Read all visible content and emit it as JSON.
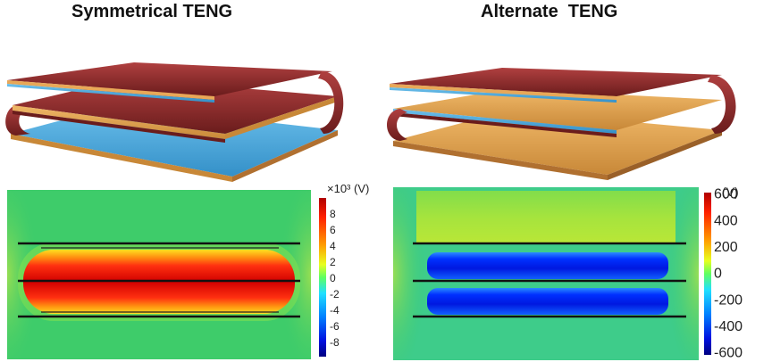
{
  "left_panel": {
    "title": "Symmetrical TENG",
    "colorbar_unit_html": "×10³ (V)",
    "colorbar_ticks": [
      "8",
      "6",
      "4",
      "2",
      "0",
      "-2",
      "-4",
      "-6",
      "-8"
    ]
  },
  "right_panel": {
    "title": "Alternate  TENG",
    "colorbar_unit": "(V)",
    "colorbar_ticks": [
      "600",
      "400",
      "200",
      "0",
      "-200",
      "-400",
      "-600"
    ]
  },
  "colors": {
    "shell_red": "#8b2a2a",
    "orange_layer": "#e0a050",
    "blue_layer": "#4aa8dc",
    "field_background": "#3ecc6a",
    "field_high": "#e01818",
    "field_low": "#1830d8"
  }
}
